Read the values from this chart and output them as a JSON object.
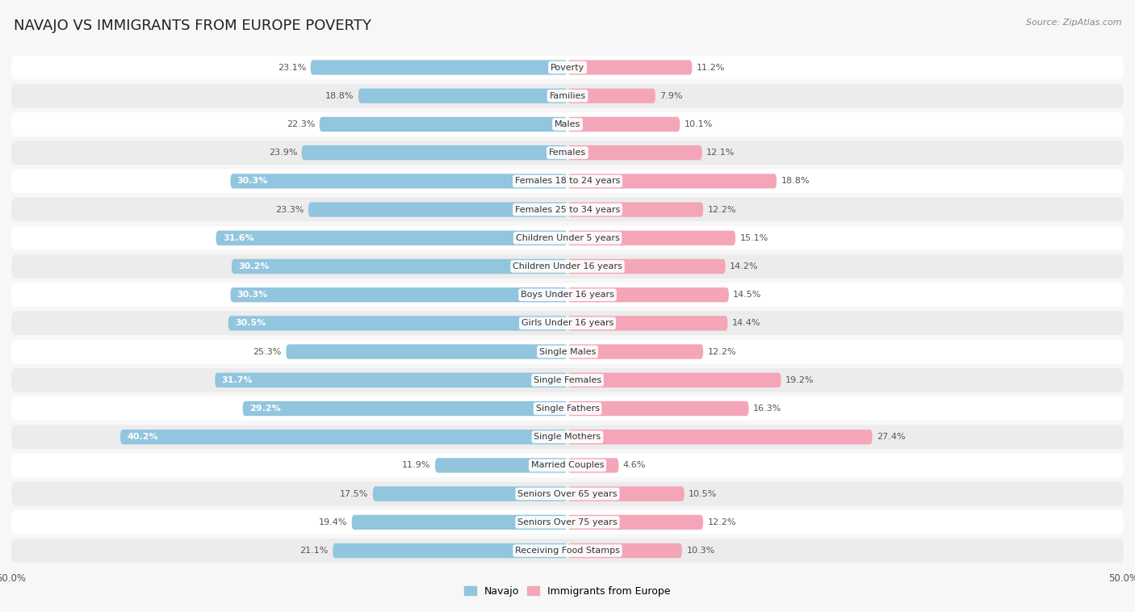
{
  "title": "NAVAJO VS IMMIGRANTS FROM EUROPE POVERTY",
  "source": "Source: ZipAtlas.com",
  "categories": [
    "Poverty",
    "Families",
    "Males",
    "Females",
    "Females 18 to 24 years",
    "Females 25 to 34 years",
    "Children Under 5 years",
    "Children Under 16 years",
    "Boys Under 16 years",
    "Girls Under 16 years",
    "Single Males",
    "Single Females",
    "Single Fathers",
    "Single Mothers",
    "Married Couples",
    "Seniors Over 65 years",
    "Seniors Over 75 years",
    "Receiving Food Stamps"
  ],
  "navajo_values": [
    23.1,
    18.8,
    22.3,
    23.9,
    30.3,
    23.3,
    31.6,
    30.2,
    30.3,
    30.5,
    25.3,
    31.7,
    29.2,
    40.2,
    11.9,
    17.5,
    19.4,
    21.1
  ],
  "europe_values": [
    11.2,
    7.9,
    10.1,
    12.1,
    18.8,
    12.2,
    15.1,
    14.2,
    14.5,
    14.4,
    12.2,
    19.2,
    16.3,
    27.4,
    4.6,
    10.5,
    12.2,
    10.3
  ],
  "navajo_color": "#92c5de",
  "europe_color": "#f4a6b8",
  "bg_color": "#f7f7f7",
  "row_color_even": "#ffffff",
  "row_color_odd": "#ececec",
  "max_value": 50.0,
  "bar_height": 0.52,
  "title_fontsize": 13,
  "category_fontsize": 8.0,
  "value_fontsize": 8.0
}
